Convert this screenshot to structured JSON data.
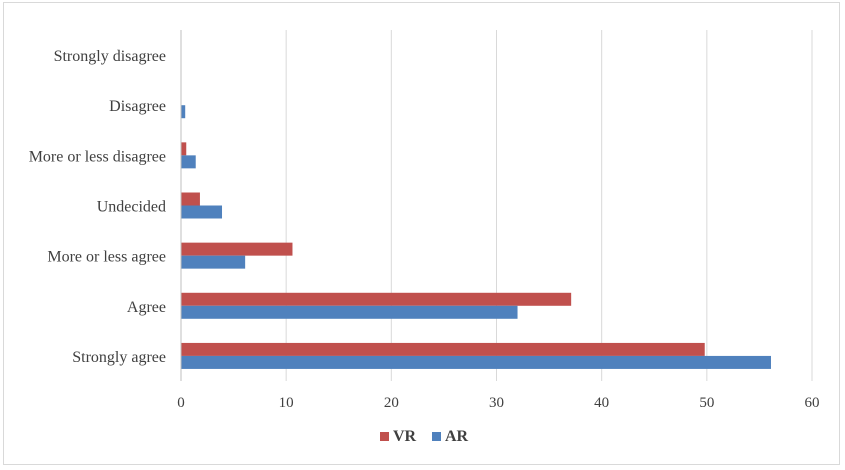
{
  "chart_data": {
    "type": "bar",
    "orientation": "horizontal",
    "title": "",
    "xlabel": "",
    "ylabel": "",
    "xlim": [
      0,
      60
    ],
    "x_ticks": [
      0,
      10,
      20,
      30,
      40,
      50,
      60
    ],
    "x_tick_labels": [
      "0",
      "10",
      "20",
      "30",
      "40",
      "50",
      "60"
    ],
    "grid": true,
    "categories": [
      "Strongly agree",
      "Agree",
      "More or less agree",
      "Undecided",
      "More or less disagree",
      "Disagree",
      "Strongly disagree"
    ],
    "series": [
      {
        "name": "VR",
        "color": "#c0504d",
        "values": [
          49.8,
          37.1,
          10.6,
          1.8,
          0.5,
          0.0,
          0.0
        ]
      },
      {
        "name": "AR",
        "color": "#4f81bd",
        "values": [
          56.1,
          32.0,
          6.1,
          3.9,
          1.4,
          0.4,
          0.0
        ]
      }
    ],
    "legend": {
      "position": "bottom",
      "entries": [
        "VR",
        "AR"
      ]
    }
  }
}
